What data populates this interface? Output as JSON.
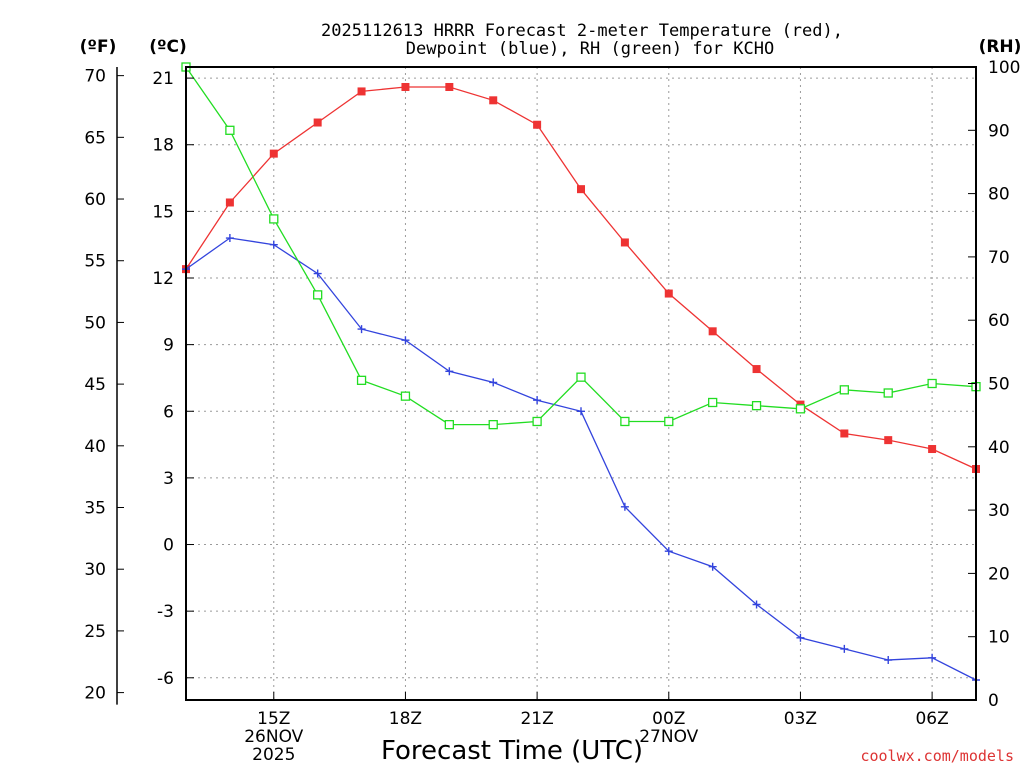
{
  "chart_data": {
    "type": "line",
    "title_lines": [
      "2025112613 HRRR Forecast 2-meter Temperature (red),",
      "Dewpoint (blue), RH (green) for KCHO"
    ],
    "units": {
      "f": "(ºF)",
      "c": "(ºC)",
      "rh": "(RH)"
    },
    "xlabel": "Forecast Time (UTC)",
    "credit": "coolwx.com/models",
    "x_hours": [
      13,
      14,
      15,
      16,
      17,
      18,
      19,
      20,
      21,
      22,
      23,
      24,
      25,
      26,
      27,
      28,
      29,
      30,
      31
    ],
    "xlim": [
      13,
      31
    ],
    "x_ticks": [
      {
        "hour": 15,
        "lines": [
          "15Z",
          "26NOV",
          "2025"
        ]
      },
      {
        "hour": 18,
        "lines": [
          "18Z"
        ]
      },
      {
        "hour": 21,
        "lines": [
          "21Z"
        ]
      },
      {
        "hour": 24,
        "lines": [
          "00Z",
          "27NOV"
        ]
      },
      {
        "hour": 27,
        "lines": [
          "03Z"
        ]
      },
      {
        "hour": 30,
        "lines": [
          "06Z"
        ]
      }
    ],
    "ylim_c": [
      -7,
      21.5
    ],
    "y_ticks_c": [
      "21",
      "18",
      "15",
      "12",
      "9",
      "6",
      "3",
      "0",
      "-3",
      "-6"
    ],
    "y_ticks_f": [
      "70",
      "65",
      "60",
      "55",
      "50",
      "45",
      "40",
      "35",
      "30",
      "25",
      "20"
    ],
    "ylim_rh": [
      0,
      100
    ],
    "y_ticks_rh": [
      "100",
      "90",
      "80",
      "70",
      "60",
      "50",
      "40",
      "30",
      "20",
      "10",
      "0"
    ],
    "series": [
      {
        "name": "Temperature",
        "units": "C",
        "color": "#ee3333",
        "marker": "filled-square",
        "values": [
          12.4,
          15.4,
          17.6,
          19.0,
          20.4,
          20.6,
          20.6,
          20.0,
          18.9,
          16.0,
          13.6,
          11.3,
          9.6,
          7.9,
          6.3,
          5.0,
          4.7,
          4.3,
          3.4
        ]
      },
      {
        "name": "Dewpoint",
        "units": "C",
        "color": "#3344dd",
        "marker": "plus",
        "values": [
          12.4,
          13.8,
          13.5,
          12.2,
          9.7,
          9.2,
          7.8,
          7.3,
          6.5,
          6.0,
          1.7,
          -0.3,
          -1.0,
          -2.7,
          -4.2,
          -4.7,
          -5.2,
          -5.1,
          -6.1
        ]
      },
      {
        "name": "RH",
        "units": "%",
        "color": "#22dd22",
        "marker": "open-square",
        "values": [
          100,
          90,
          76,
          64,
          50.5,
          48,
          43.5,
          43.5,
          44,
          51,
          44,
          44,
          47,
          46.5,
          46,
          49,
          48.5,
          50,
          49.5
        ]
      }
    ]
  }
}
